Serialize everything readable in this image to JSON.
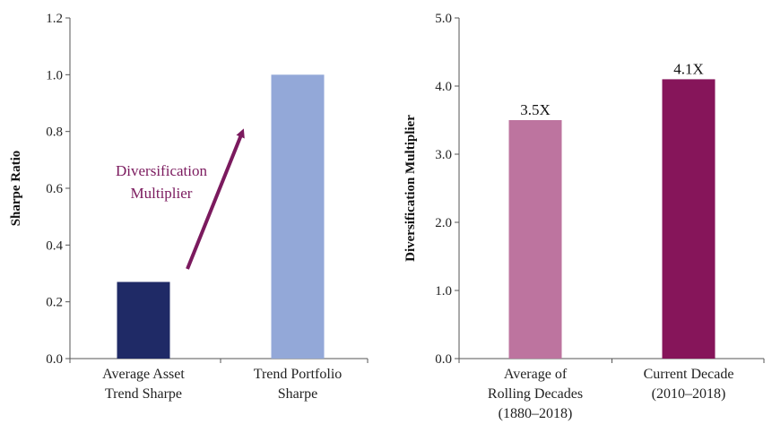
{
  "chart_data": [
    {
      "type": "bar",
      "ylabel": "Sharpe Ratio",
      "ylim": [
        0,
        1.2
      ],
      "yticks": [
        "0.0",
        "0.2",
        "0.4",
        "0.6",
        "0.8",
        "1.0",
        "1.2"
      ],
      "categories": [
        [
          "Average Asset",
          "Trend Sharpe"
        ],
        [
          "Trend Portfolio",
          "Sharpe"
        ]
      ],
      "values": [
        0.27,
        1.0
      ],
      "colors": [
        "#1f2a66",
        "#93a8d8"
      ],
      "annotation": {
        "lines": [
          "Diversification",
          "Multiplier"
        ],
        "color": "#7b1a5e"
      }
    },
    {
      "type": "bar",
      "ylabel": "Diversification Multiplier",
      "ylim": [
        0,
        5.0
      ],
      "yticks": [
        "0.0",
        "1.0",
        "2.0",
        "3.0",
        "4.0",
        "5.0"
      ],
      "categories": [
        [
          "Average of",
          "Rolling Decades",
          "(1880–2018)"
        ],
        [
          "Current Decade",
          "(2010–2018)"
        ]
      ],
      "values": [
        3.5,
        4.1
      ],
      "data_labels": [
        "3.5X",
        "4.1X"
      ],
      "colors": [
        "#bd749f",
        "#86155a"
      ]
    }
  ]
}
